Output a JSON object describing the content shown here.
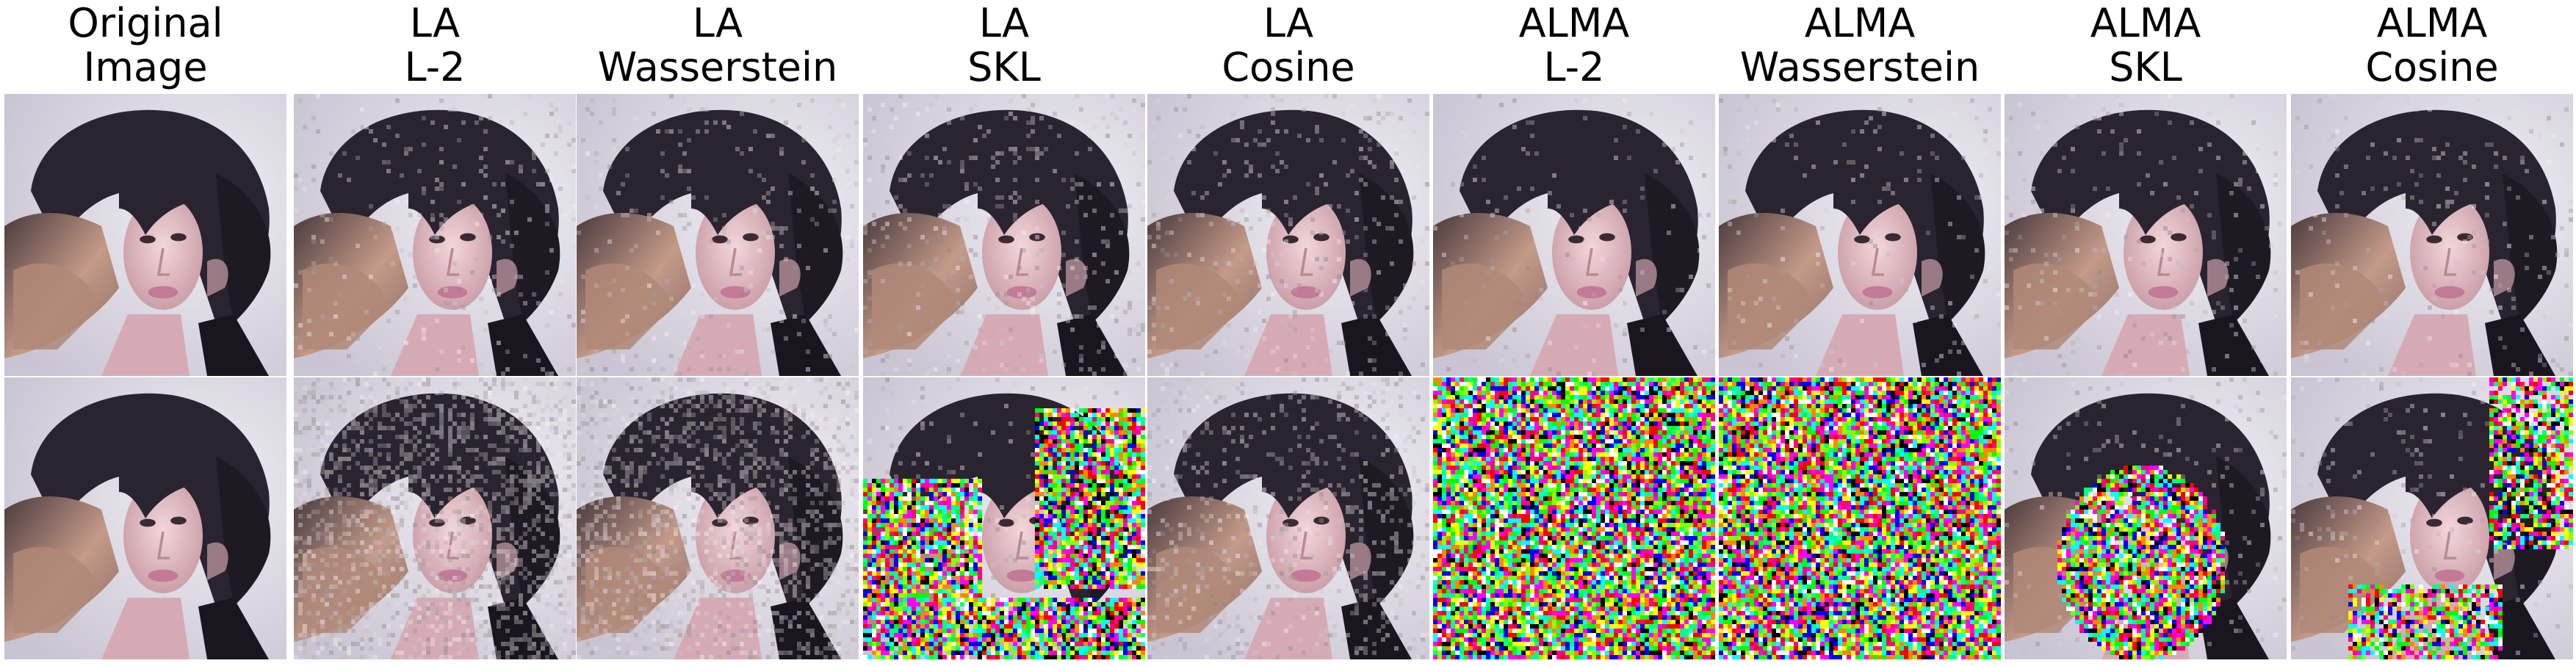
{
  "columns": [
    {
      "line1": "Original",
      "line2": "Image"
    },
    {
      "line1": "LA",
      "line2": "L-2"
    },
    {
      "line1": "LA",
      "line2": "Wasserstein"
    },
    {
      "line1": "LA",
      "line2": "SKL"
    },
    {
      "line1": "LA",
      "line2": "Cosine"
    },
    {
      "line1": "ALMA",
      "line2": "L-2"
    },
    {
      "line1": "ALMA",
      "line2": "Wasserstein"
    },
    {
      "line1": "ALMA",
      "line2": "SKL"
    },
    {
      "line1": "ALMA",
      "line2": "Cosine"
    }
  ],
  "rows": [
    {
      "cells": [
        {
          "noise_level": 0.0,
          "noise_region": "none"
        },
        {
          "noise_level": 0.06,
          "noise_region": "uniform"
        },
        {
          "noise_level": 0.06,
          "noise_region": "uniform"
        },
        {
          "noise_level": 0.08,
          "noise_region": "uniform"
        },
        {
          "noise_level": 0.07,
          "noise_region": "uniform"
        },
        {
          "noise_level": 0.03,
          "noise_region": "uniform"
        },
        {
          "noise_level": 0.04,
          "noise_region": "uniform"
        },
        {
          "noise_level": 0.05,
          "noise_region": "uniform"
        },
        {
          "noise_level": 0.05,
          "noise_region": "uniform"
        }
      ]
    },
    {
      "cells": [
        {
          "noise_level": 0.0,
          "noise_region": "none"
        },
        {
          "noise_level": 0.35,
          "noise_region": "uniform"
        },
        {
          "noise_level": 0.3,
          "noise_region": "uniform"
        },
        {
          "noise_level": 0.9,
          "noise_region": "left-right"
        },
        {
          "noise_level": 0.15,
          "noise_region": "uniform"
        },
        {
          "noise_level": 1.0,
          "noise_region": "full"
        },
        {
          "noise_level": 1.0,
          "noise_region": "full"
        },
        {
          "noise_level": 0.9,
          "noise_region": "face"
        },
        {
          "noise_level": 0.75,
          "noise_region": "right-bottom"
        }
      ]
    }
  ],
  "colors": {
    "background": "#ffffff",
    "hair": "#2a2430",
    "hair_light": "#c49a88",
    "skin": "#e8c4c8",
    "wall": "#dcd8e4"
  }
}
